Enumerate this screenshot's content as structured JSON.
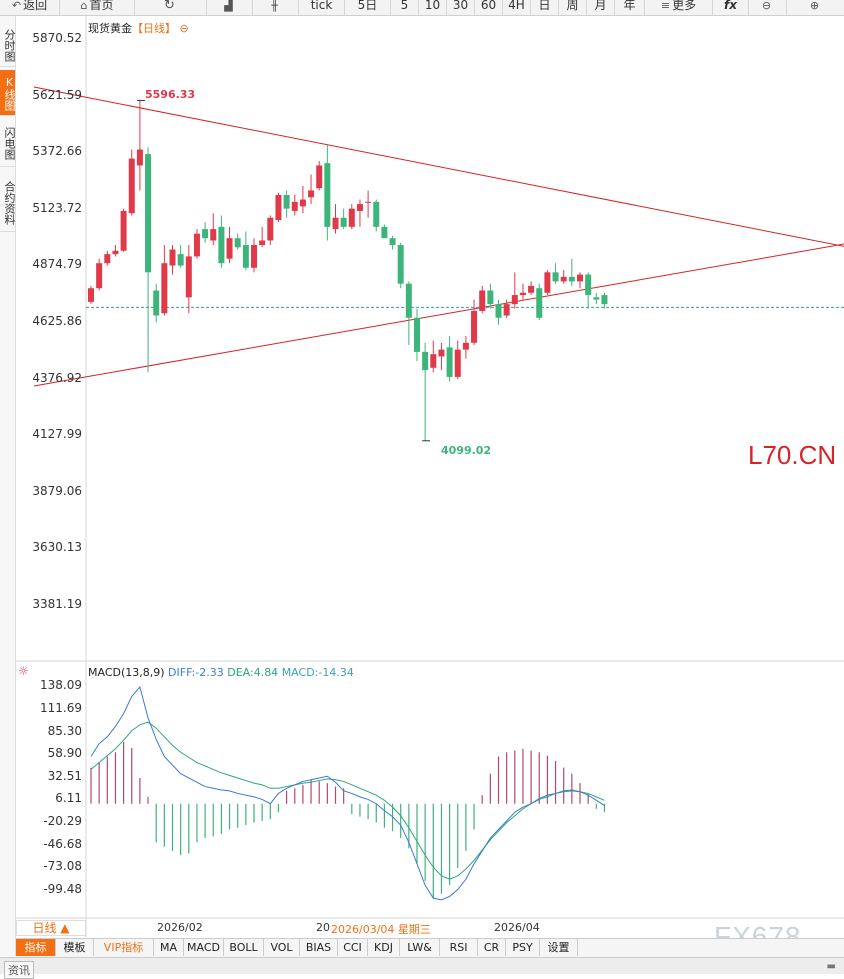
{
  "toolbar": {
    "back": "返回",
    "home": "首页",
    "tick": "tick",
    "fiveday": "5日",
    "p5": "5",
    "p10": "10",
    "p30": "30",
    "p60": "60",
    "p4h": "4H",
    "pday": "日",
    "pweek": "周",
    "pmonth": "月",
    "pyear": "年",
    "more": "更多",
    "fx": "fx"
  },
  "side_tabs": [
    "分时图",
    "K线图",
    "闪电图",
    "合约资料"
  ],
  "kline": {
    "title": "现货黄金",
    "period": "【日线】",
    "high_label": "5596.33",
    "low_label": "4099.02",
    "current_price": 4686,
    "y_ticks": [
      "5870.52",
      "5621.59",
      "5372.66",
      "5123.72",
      "4874.79",
      "4625.86",
      "4376.92",
      "4127.99",
      "3879.06",
      "3630.13",
      "3381.19"
    ]
  },
  "macd": {
    "title": "MACD(13,8,9)",
    "diff": "DIFF:-2.33",
    "dea": "DEA:4.84",
    "macd": "MACD:-14.34",
    "y_ticks": [
      "138.09",
      "111.69",
      "85.30",
      "58.90",
      "32.51",
      "6.11",
      "-20.29",
      "-46.68",
      "-73.08",
      "-99.48"
    ]
  },
  "x_axis": {
    "period_select": "日线 ▲",
    "labels": [
      "2026/02",
      "20",
      "2026/04"
    ],
    "crosshair_date": "2026/03/04 星期三"
  },
  "indicator_tabs": [
    "指标",
    "模板",
    "VIP指标",
    "MA",
    "MACD",
    "BOLL",
    "VOL",
    "BIAS",
    "CCI",
    "KDJ",
    "LW&",
    "RSI",
    "CR",
    "PSY",
    "设置"
  ],
  "watermark": "L70.CN",
  "brand_watermark": "FX678",
  "bottom": {
    "tab": "资讯"
  },
  "colors": {
    "up": "#e0394a",
    "down": "#3db57a",
    "accent": "#f36f14",
    "diff_line": "#3a7bd5",
    "dea_line": "#2aa876",
    "trend_line": "#d42323"
  },
  "chart_data": [
    {
      "type": "candlestick",
      "title": "现货黄金【日线】",
      "ylim": [
        3381.19,
        5870.52
      ],
      "candles": [
        {
          "o": 4710,
          "c": 4770,
          "h": 4780,
          "l": 4700
        },
        {
          "o": 4770,
          "c": 4880,
          "h": 4900,
          "l": 4760
        },
        {
          "o": 4880,
          "c": 4920,
          "h": 4935,
          "l": 4870
        },
        {
          "o": 4920,
          "c": 4935,
          "h": 4960,
          "l": 4910
        },
        {
          "o": 4935,
          "c": 5110,
          "h": 5120,
          "l": 4930
        },
        {
          "o": 5100,
          "c": 5340,
          "h": 5380,
          "l": 5090
        },
        {
          "o": 5310,
          "c": 5380,
          "h": 5596,
          "l": 5200
        },
        {
          "o": 5360,
          "c": 4840,
          "h": 5390,
          "l": 4400
        },
        {
          "o": 4760,
          "c": 4650,
          "h": 4790,
          "l": 4620
        },
        {
          "o": 4660,
          "c": 4880,
          "h": 4960,
          "l": 4650
        },
        {
          "o": 4870,
          "c": 4940,
          "h": 4960,
          "l": 4830
        },
        {
          "o": 4920,
          "c": 4870,
          "h": 4960,
          "l": 4860
        },
        {
          "o": 4730,
          "c": 4910,
          "h": 4960,
          "l": 4660
        },
        {
          "o": 4910,
          "c": 5010,
          "h": 5030,
          "l": 4900
        },
        {
          "o": 5030,
          "c": 4990,
          "h": 5060,
          "l": 4970
        },
        {
          "o": 4980,
          "c": 5030,
          "h": 5100,
          "l": 4960
        },
        {
          "o": 5040,
          "c": 4880,
          "h": 5090,
          "l": 4860
        },
        {
          "o": 4900,
          "c": 4990,
          "h": 5040,
          "l": 4880
        },
        {
          "o": 4990,
          "c": 4950,
          "h": 5010,
          "l": 4940
        },
        {
          "o": 4960,
          "c": 4860,
          "h": 5020,
          "l": 4850
        },
        {
          "o": 4860,
          "c": 4960,
          "h": 4990,
          "l": 4840
        },
        {
          "o": 4960,
          "c": 4980,
          "h": 5040,
          "l": 4950
        },
        {
          "o": 4980,
          "c": 5080,
          "h": 5090,
          "l": 4960
        },
        {
          "o": 5070,
          "c": 5180,
          "h": 5190,
          "l": 5060
        },
        {
          "o": 5180,
          "c": 5120,
          "h": 5200,
          "l": 5080
        },
        {
          "o": 5110,
          "c": 5150,
          "h": 5180,
          "l": 5090
        },
        {
          "o": 5130,
          "c": 5160,
          "h": 5220,
          "l": 5100
        },
        {
          "o": 5170,
          "c": 5200,
          "h": 5270,
          "l": 5140
        },
        {
          "o": 5210,
          "c": 5310,
          "h": 5330,
          "l": 5200
        },
        {
          "o": 5320,
          "c": 5040,
          "h": 5400,
          "l": 4980
        },
        {
          "o": 5030,
          "c": 5080,
          "h": 5140,
          "l": 5010
        },
        {
          "o": 5080,
          "c": 5040,
          "h": 5120,
          "l": 5030
        },
        {
          "o": 5040,
          "c": 5120,
          "h": 5140,
          "l": 5030
        },
        {
          "o": 5110,
          "c": 5140,
          "h": 5160,
          "l": 5040
        },
        {
          "o": 5150,
          "c": 5150,
          "h": 5200,
          "l": 5080
        },
        {
          "o": 5150,
          "c": 5040,
          "h": 5160,
          "l": 5020
        },
        {
          "o": 5040,
          "c": 4990,
          "h": 5050,
          "l": 4990
        },
        {
          "o": 4990,
          "c": 4960,
          "h": 5000,
          "l": 4940
        },
        {
          "o": 4960,
          "c": 4790,
          "h": 4970,
          "l": 4770
        },
        {
          "o": 4790,
          "c": 4640,
          "h": 4800,
          "l": 4520
        },
        {
          "o": 4640,
          "c": 4490,
          "h": 4680,
          "l": 4450
        },
        {
          "o": 4490,
          "c": 4410,
          "h": 4530,
          "l": 4099
        },
        {
          "o": 4420,
          "c": 4480,
          "h": 4540,
          "l": 4400
        },
        {
          "o": 4470,
          "c": 4500,
          "h": 4530,
          "l": 4410
        },
        {
          "o": 4510,
          "c": 4380,
          "h": 4560,
          "l": 4360
        },
        {
          "o": 4380,
          "c": 4500,
          "h": 4540,
          "l": 4370
        },
        {
          "o": 4500,
          "c": 4530,
          "h": 4560,
          "l": 4460
        },
        {
          "o": 4530,
          "c": 4670,
          "h": 4720,
          "l": 4520
        },
        {
          "o": 4670,
          "c": 4760,
          "h": 4780,
          "l": 4660
        },
        {
          "o": 4760,
          "c": 4700,
          "h": 4790,
          "l": 4680
        },
        {
          "o": 4700,
          "c": 4640,
          "h": 4720,
          "l": 4610
        },
        {
          "o": 4650,
          "c": 4700,
          "h": 4720,
          "l": 4640
        },
        {
          "o": 4700,
          "c": 4740,
          "h": 4840,
          "l": 4680
        },
        {
          "o": 4740,
          "c": 4750,
          "h": 4790,
          "l": 4720
        },
        {
          "o": 4750,
          "c": 4780,
          "h": 4800,
          "l": 4740
        },
        {
          "o": 4770,
          "c": 4640,
          "h": 4790,
          "l": 4630
        },
        {
          "o": 4750,
          "c": 4840,
          "h": 4850,
          "l": 4740
        },
        {
          "o": 4840,
          "c": 4800,
          "h": 4880,
          "l": 4790
        },
        {
          "o": 4800,
          "c": 4820,
          "h": 4850,
          "l": 4790
        },
        {
          "o": 4820,
          "c": 4800,
          "h": 4900,
          "l": 4780
        },
        {
          "o": 4800,
          "c": 4830,
          "h": 4840,
          "l": 4770
        },
        {
          "o": 4830,
          "c": 4740,
          "h": 4840,
          "l": 4680
        },
        {
          "o": 4730,
          "c": 4720,
          "h": 4750,
          "l": 4700
        },
        {
          "o": 4740,
          "c": 4700,
          "h": 4750,
          "l": 4680
        }
      ],
      "trendlines": [
        {
          "from": {
            "index": -7,
            "price": 5655
          },
          "to": {
            "index": 110,
            "price": 4830
          }
        },
        {
          "from": {
            "index": -7,
            "price": 4340
          },
          "to": {
            "index": 110,
            "price": 5075
          }
        }
      ]
    },
    {
      "type": "macd",
      "title": "MACD(13,8,9)",
      "ylim": [
        -118,
        150
      ],
      "histogram": [
        42,
        48,
        55,
        60,
        72,
        65,
        30,
        8,
        -45,
        -50,
        -55,
        -60,
        -58,
        -45,
        -40,
        -38,
        -35,
        -30,
        -28,
        -25,
        -22,
        -20,
        -18,
        -10,
        15,
        18,
        22,
        28,
        26,
        24,
        20,
        18,
        -12,
        -15,
        -18,
        -22,
        -28,
        -32,
        -40,
        -52,
        -70,
        -90,
        -110,
        -105,
        -95,
        -75,
        -55,
        -30,
        10,
        35,
        55,
        60,
        62,
        64,
        62,
        60,
        56,
        50,
        42,
        35,
        24,
        12,
        -6,
        -10
      ],
      "diff": [
        55,
        70,
        78,
        90,
        105,
        125,
        136,
        100,
        75,
        55,
        45,
        35,
        30,
        25,
        20,
        18,
        16,
        15,
        12,
        10,
        8,
        5,
        0,
        12,
        18,
        22,
        26,
        28,
        30,
        32,
        25,
        15,
        12,
        8,
        5,
        0,
        -8,
        -15,
        -25,
        -45,
        -70,
        -95,
        -110,
        -112,
        -108,
        -100,
        -88,
        -70,
        -55,
        -40,
        -30,
        -20,
        -10,
        -4,
        0,
        6,
        10,
        12,
        15,
        16,
        14,
        10,
        4,
        -2
      ],
      "dea": [
        40,
        48,
        56,
        64,
        74,
        85,
        92,
        95,
        88,
        78,
        68,
        60,
        54,
        48,
        44,
        40,
        36,
        33,
        30,
        27,
        24,
        22,
        18,
        18,
        20,
        22,
        24,
        25,
        27,
        29,
        28,
        26,
        22,
        18,
        14,
        10,
        4,
        -4,
        -14,
        -28,
        -44,
        -60,
        -74,
        -84,
        -88,
        -84,
        -76,
        -66,
        -54,
        -42,
        -32,
        -22,
        -14,
        -6,
        0,
        5,
        8,
        12,
        14,
        15,
        14,
        12,
        8,
        4
      ]
    }
  ]
}
